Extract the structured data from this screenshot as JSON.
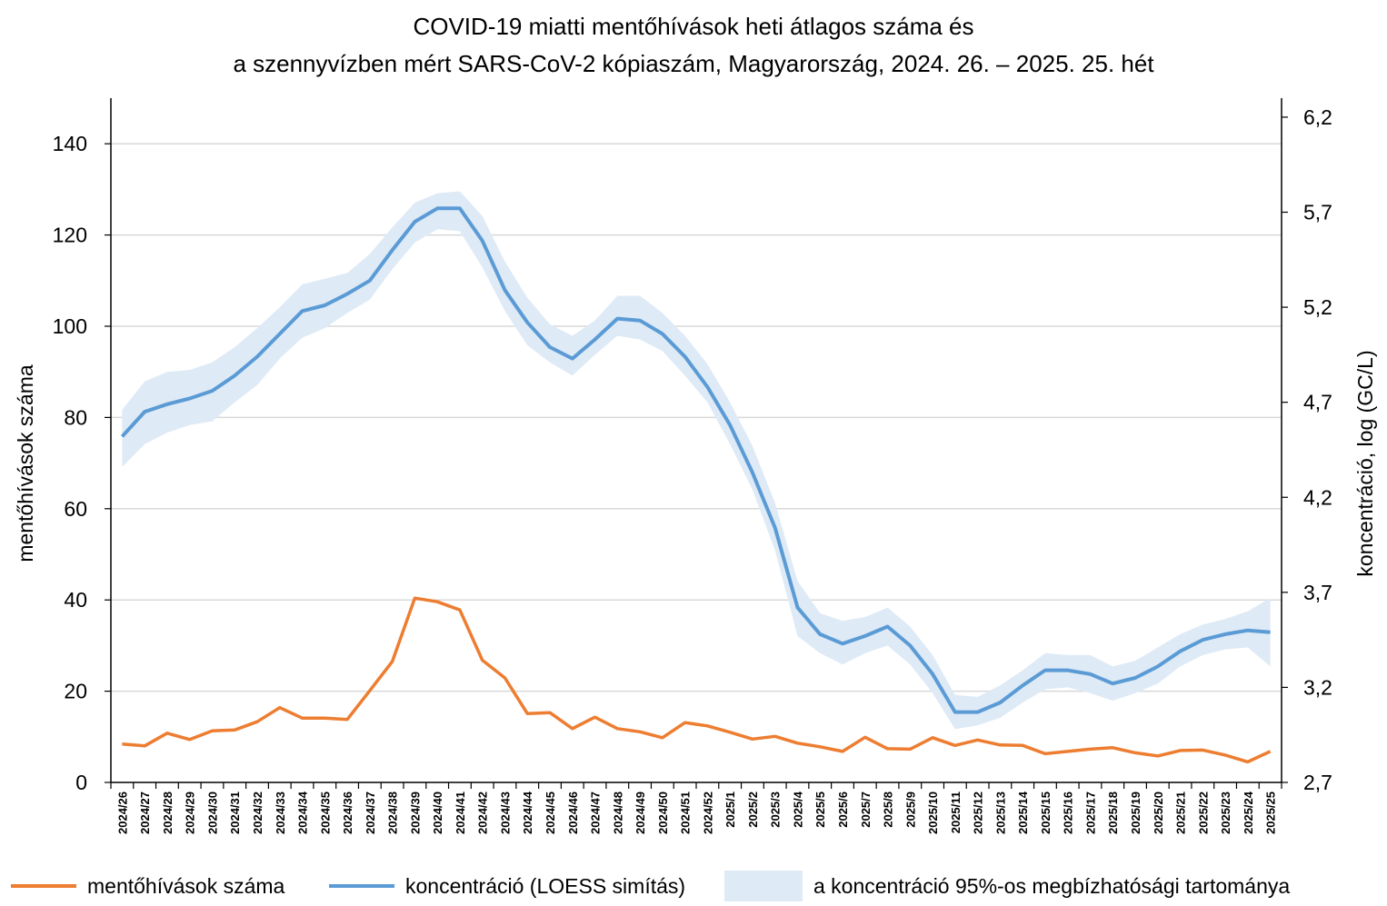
{
  "title": {
    "line1": "COVID-19 miatti mentőhívások heti átlagos száma és",
    "line2": "a szennyvízben mért SARS-CoV-2 kópiaszám, Magyarország, 2024. 26. – 2025. 25. hét"
  },
  "colors": {
    "calls": "#ED7D31",
    "concentration": "#5B9BD5",
    "band": "#DEEAF6",
    "grid": "#D9D9D9"
  },
  "legend": {
    "calls": "mentőhívások száma",
    "concentration": "koncentráció (LOESS simítás)",
    "band": "a koncentráció 95%-os megbízhatósági tartománya"
  },
  "chart_data": {
    "type": "line",
    "grid": true,
    "legend_position": "bottom",
    "categories": [
      "2024/26",
      "2024/27",
      "2024/28",
      "2024/29",
      "2024/30",
      "2024/31",
      "2024/32",
      "2024/33",
      "2024/34",
      "2024/35",
      "2024/36",
      "2024/37",
      "2024/38",
      "2024/39",
      "2024/40",
      "2024/41",
      "2024/42",
      "2024/43",
      "2024/44",
      "2024/45",
      "2024/46",
      "2024/47",
      "2024/48",
      "2024/49",
      "2024/50",
      "2024/51",
      "2024/52",
      "2025/1",
      "2025/2",
      "2025/3",
      "2025/4",
      "2025/5",
      "2025/6",
      "2025/7",
      "2025/8",
      "2025/9",
      "2025/10",
      "2025/11",
      "2025/12",
      "2025/13",
      "2025/14",
      "2025/15",
      "2025/16",
      "2025/17",
      "2025/18",
      "2025/19",
      "2025/20",
      "2025/21",
      "2025/22",
      "2025/23",
      "2025/24",
      "2025/25"
    ],
    "y_left": {
      "label": "mentőhívások száma",
      "min": 0,
      "max": 150,
      "ticks": [
        0,
        20,
        40,
        60,
        80,
        100,
        120,
        140
      ],
      "tick_labels": [
        "0",
        "20",
        "40",
        "60",
        "80",
        "100",
        "120",
        "140"
      ]
    },
    "y_right": {
      "label": "koncentráció, log (GC/L)",
      "min": 2.7,
      "max": 6.3,
      "ticks": [
        2.7,
        3.2,
        3.7,
        4.2,
        4.7,
        5.2,
        5.7,
        6.2
      ],
      "tick_labels": [
        "2,7",
        "3,2",
        "3,7",
        "4,2",
        "4,7",
        "5,2",
        "5,7",
        "6,2"
      ]
    },
    "series": [
      {
        "name": "mentőhívások száma",
        "axis": "left",
        "values": [
          8.4,
          8.0,
          10.8,
          9.4,
          11.3,
          11.5,
          13.3,
          16.4,
          14.1,
          14.1,
          13.8,
          20.1,
          26.5,
          40.4,
          39.6,
          37.8,
          26.8,
          22.9,
          15.1,
          15.3,
          11.8,
          14.3,
          11.8,
          11.1,
          9.8,
          13.1,
          12.4,
          11.0,
          9.5,
          10.1,
          8.6,
          7.8,
          6.8,
          9.9,
          7.4,
          7.3,
          9.8,
          8.1,
          9.3,
          8.2,
          8.1,
          6.3,
          6.8,
          7.3,
          7.6,
          6.5,
          5.8,
          7.0,
          7.1,
          6.0,
          4.5,
          6.8
        ]
      },
      {
        "name": "koncentráció (LOESS simítás)",
        "axis": "right",
        "values": [
          4.52,
          4.65,
          4.69,
          4.72,
          4.76,
          4.84,
          4.94,
          5.06,
          5.18,
          5.21,
          5.27,
          5.34,
          5.5,
          5.65,
          5.72,
          5.72,
          5.55,
          5.29,
          5.12,
          4.99,
          4.93,
          5.03,
          5.14,
          5.13,
          5.06,
          4.94,
          4.78,
          4.58,
          4.33,
          4.04,
          3.62,
          3.48,
          3.43,
          3.47,
          3.52,
          3.42,
          3.27,
          3.07,
          3.07,
          3.12,
          3.21,
          3.29,
          3.29,
          3.27,
          3.22,
          3.25,
          3.31,
          3.39,
          3.45,
          3.48,
          3.5,
          3.49
        ]
      },
      {
        "name": "a koncentráció 95%-os megbízhatósági tartománya",
        "axis": "right",
        "type": "band",
        "lower": [
          4.36,
          4.48,
          4.54,
          4.58,
          4.6,
          4.7,
          4.79,
          4.93,
          5.04,
          5.09,
          5.17,
          5.24,
          5.4,
          5.54,
          5.61,
          5.6,
          5.41,
          5.18,
          5.0,
          4.91,
          4.84,
          4.95,
          5.05,
          5.03,
          4.97,
          4.84,
          4.7,
          4.48,
          4.24,
          3.92,
          3.47,
          3.38,
          3.32,
          3.38,
          3.42,
          3.32,
          3.17,
          2.98,
          3.0,
          3.04,
          3.12,
          3.19,
          3.2,
          3.17,
          3.13,
          3.17,
          3.22,
          3.31,
          3.37,
          3.4,
          3.41,
          3.31
        ],
        "upper": [
          4.66,
          4.81,
          4.86,
          4.87,
          4.91,
          4.99,
          5.09,
          5.2,
          5.32,
          5.35,
          5.38,
          5.48,
          5.62,
          5.75,
          5.8,
          5.81,
          5.68,
          5.44,
          5.25,
          5.11,
          5.05,
          5.13,
          5.26,
          5.26,
          5.17,
          5.05,
          4.9,
          4.7,
          4.47,
          4.17,
          3.76,
          3.59,
          3.55,
          3.57,
          3.62,
          3.52,
          3.37,
          3.16,
          3.15,
          3.21,
          3.29,
          3.38,
          3.37,
          3.37,
          3.31,
          3.34,
          3.41,
          3.48,
          3.53,
          3.56,
          3.6,
          3.67
        ]
      }
    ]
  }
}
